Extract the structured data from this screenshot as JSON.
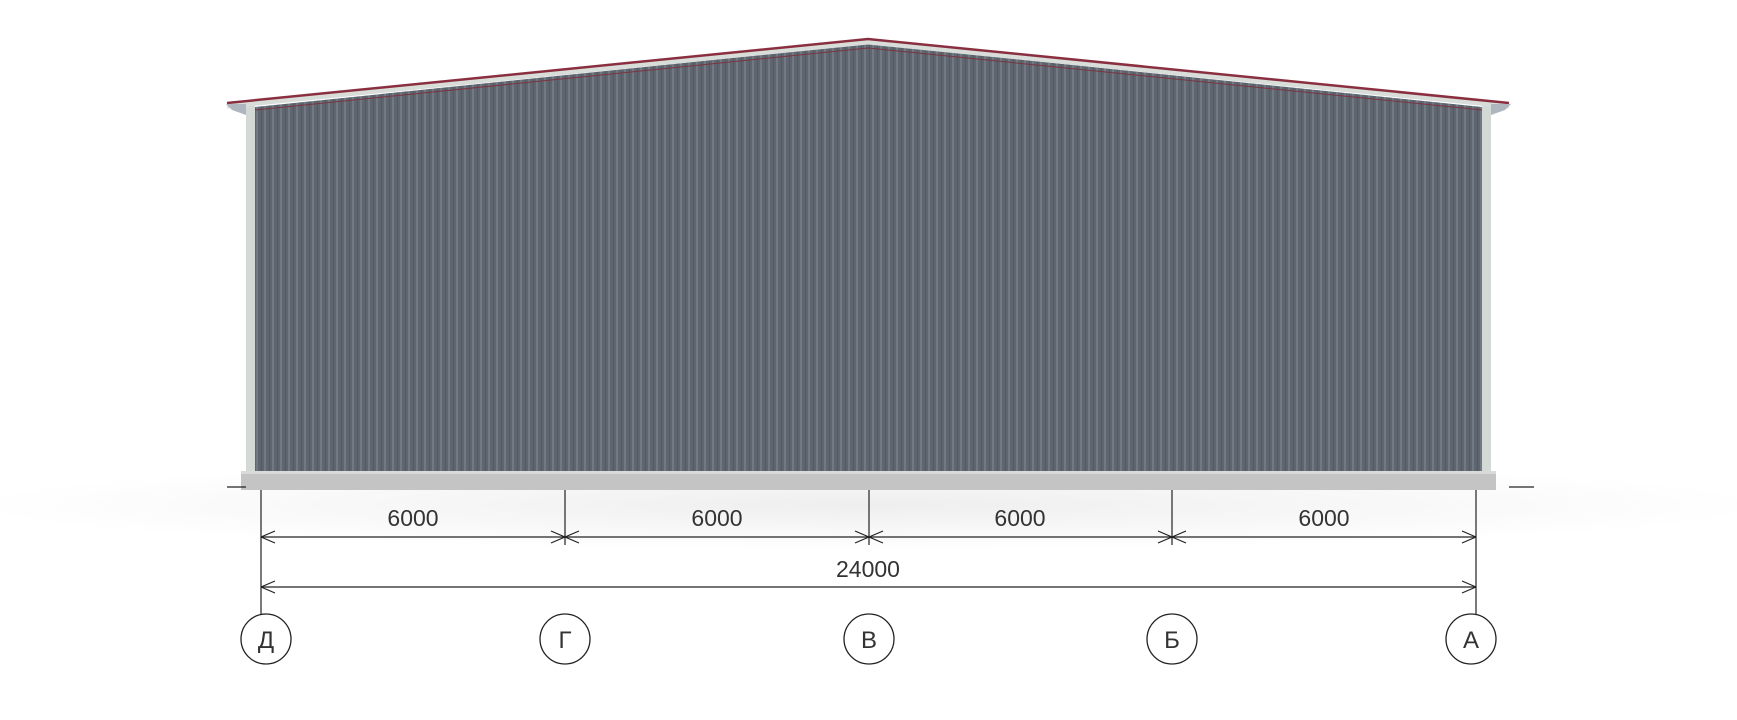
{
  "colors": {
    "wall": "#5f6670",
    "roof_trim": "#8a2f3f",
    "column": "#d3d9d5",
    "foundation": "#c4c4c4",
    "lines": "#222222"
  },
  "dimensions": {
    "spans": [
      "6000",
      "6000",
      "6000",
      "6000"
    ],
    "total": "24000"
  },
  "axes": [
    "Д",
    "Г",
    "В",
    "Б",
    "А"
  ]
}
